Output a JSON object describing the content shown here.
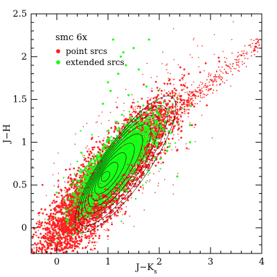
{
  "chart_data": {
    "type": "scatter",
    "title": "",
    "xlabel": "J−K",
    "xlabel_subscript": "s",
    "ylabel": "J−H",
    "xlim": [
      -0.5,
      4.0
    ],
    "ylim": [
      -0.3,
      2.5
    ],
    "x_ticks": [
      0,
      1,
      2,
      3,
      4
    ],
    "y_ticks": [
      0,
      0.5,
      1,
      1.5,
      2,
      2.5
    ],
    "x_tick_labels": [
      "0",
      "1",
      "2",
      "3",
      "4"
    ],
    "y_tick_labels": [
      "0",
      "0.5",
      "1",
      "1.5",
      "2",
      "2.5"
    ],
    "grid": false,
    "legend": {
      "title": "smc 6x",
      "placement": "top-left"
    },
    "series": [
      {
        "name": "point srcs",
        "color": "#ff2020",
        "marker": "dot",
        "core": {
          "center": [
            0.95,
            0.55
          ],
          "trend_slope": 0.62
        },
        "approx_extent": {
          "x": [
            -0.4,
            2.6
          ],
          "y": [
            -0.25,
            1.55
          ]
        },
        "tail": [
          [
            1.5,
            0.95
          ],
          [
            2.0,
            1.2
          ],
          [
            2.5,
            1.45
          ],
          [
            3.0,
            1.65
          ],
          [
            3.5,
            1.9
          ],
          [
            3.95,
            2.15
          ]
        ]
      },
      {
        "name": "extended srcs",
        "color": "#19ff19",
        "marker": "dot",
        "core": {
          "center": [
            1.15,
            0.75
          ],
          "trend_slope": 0.55
        },
        "approx_extent": {
          "x": [
            0.2,
            2.0
          ],
          "y": [
            0.25,
            1.25
          ]
        },
        "outliers": [
          [
            1.1,
            2.2
          ],
          [
            1.25,
            2.0
          ],
          [
            1.35,
            1.9
          ],
          [
            1.3,
            2.05
          ],
          [
            1.5,
            2.1
          ],
          [
            1.8,
            2.2
          ],
          [
            1.0,
            1.7
          ],
          [
            1.05,
            1.6
          ],
          [
            1.4,
            1.55
          ],
          [
            1.75,
            1.65
          ],
          [
            2.6,
            1.0
          ],
          [
            2.2,
            0.95
          ],
          [
            1.95,
            1.35
          ],
          [
            0.9,
            1.45
          ],
          [
            1.6,
            1.85
          ],
          [
            2.15,
            0.9
          ],
          [
            2.35,
            0.6
          ],
          [
            2.6,
            1.2
          ],
          [
            1.2,
            1.8
          ]
        ]
      }
    ],
    "contours": {
      "color": "#000000",
      "center": [
        0.95,
        0.6
      ],
      "angle_deg": 55,
      "levels": 9
    }
  }
}
